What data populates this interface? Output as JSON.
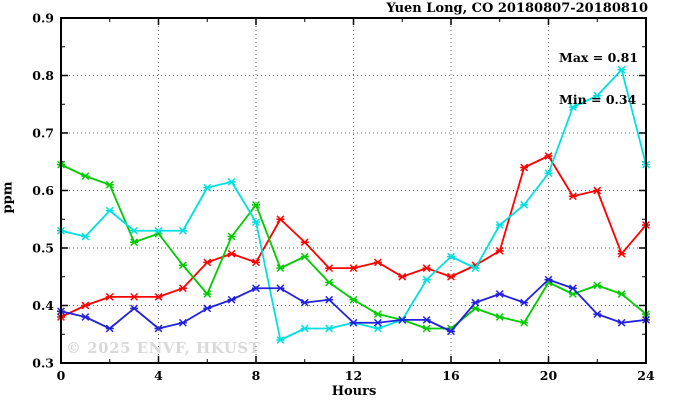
{
  "title": "Yuen Long, CO 20180807-20180810",
  "annotation": {
    "max_label": "Max = 0.81",
    "min_label": "Min = 0.34"
  },
  "watermark": "© 2025 ENVF, HKUST",
  "colors": {
    "red": "#ff0000",
    "green": "#00cc00",
    "cyan": "#00e0e0",
    "blue": "#2222dd",
    "axis": "#000000",
    "grid": "#666666",
    "watermark": "#d9d9d9"
  },
  "chart_data": {
    "type": "line",
    "title": "Yuen Long, CO 20180807-20180810",
    "xlabel": "Hours",
    "ylabel": "ppm",
    "xlim": [
      0,
      24
    ],
    "ylim": [
      0.3,
      0.9
    ],
    "xticks": [
      0,
      4,
      8,
      12,
      16,
      20,
      24
    ],
    "xtick_minor_step": 2,
    "yticks": [
      0.3,
      0.4,
      0.5,
      0.6,
      0.7,
      0.8,
      0.9
    ],
    "ytick_minor_step": 0.05,
    "grid": "dotted at major ticks, both axes",
    "legend": "none",
    "marker": "asterisk",
    "stats": {
      "max": 0.81,
      "min": 0.34
    },
    "x": [
      0,
      1,
      2,
      3,
      4,
      5,
      6,
      7,
      8,
      9,
      10,
      11,
      12,
      13,
      14,
      15,
      16,
      17,
      18,
      19,
      20,
      21,
      22,
      23,
      24
    ],
    "series": [
      {
        "name": "red",
        "color": "#ff0000",
        "values": [
          0.38,
          0.4,
          0.415,
          0.415,
          0.415,
          0.43,
          0.475,
          0.49,
          0.475,
          0.55,
          0.51,
          0.465,
          0.465,
          0.475,
          0.45,
          0.465,
          0.45,
          0.47,
          0.495,
          0.64,
          0.66,
          0.59,
          0.6,
          0.49,
          0.54
        ]
      },
      {
        "name": "green",
        "color": "#00cc00",
        "values": [
          0.645,
          0.625,
          0.61,
          0.51,
          0.525,
          0.47,
          0.42,
          0.52,
          0.575,
          0.465,
          0.485,
          0.44,
          0.41,
          0.385,
          0.375,
          0.36,
          0.36,
          0.395,
          0.38,
          0.37,
          0.44,
          0.42,
          0.435,
          0.42,
          0.385
        ]
      },
      {
        "name": "cyan",
        "color": "#00e0e0",
        "values": [
          0.53,
          0.52,
          0.565,
          0.53,
          0.53,
          0.53,
          0.605,
          0.615,
          0.545,
          0.34,
          0.36,
          0.36,
          0.37,
          0.36,
          0.375,
          0.445,
          0.485,
          0.465,
          0.54,
          0.575,
          0.63,
          0.745,
          0.765,
          0.81,
          0.645
        ]
      },
      {
        "name": "blue",
        "color": "#2222dd",
        "values": [
          0.39,
          0.38,
          0.36,
          0.395,
          0.36,
          0.37,
          0.395,
          0.41,
          0.43,
          0.43,
          0.405,
          0.41,
          0.37,
          0.37,
          0.375,
          0.375,
          0.355,
          0.405,
          0.42,
          0.405,
          0.445,
          0.43,
          0.385,
          0.37,
          0.375
        ]
      }
    ]
  }
}
